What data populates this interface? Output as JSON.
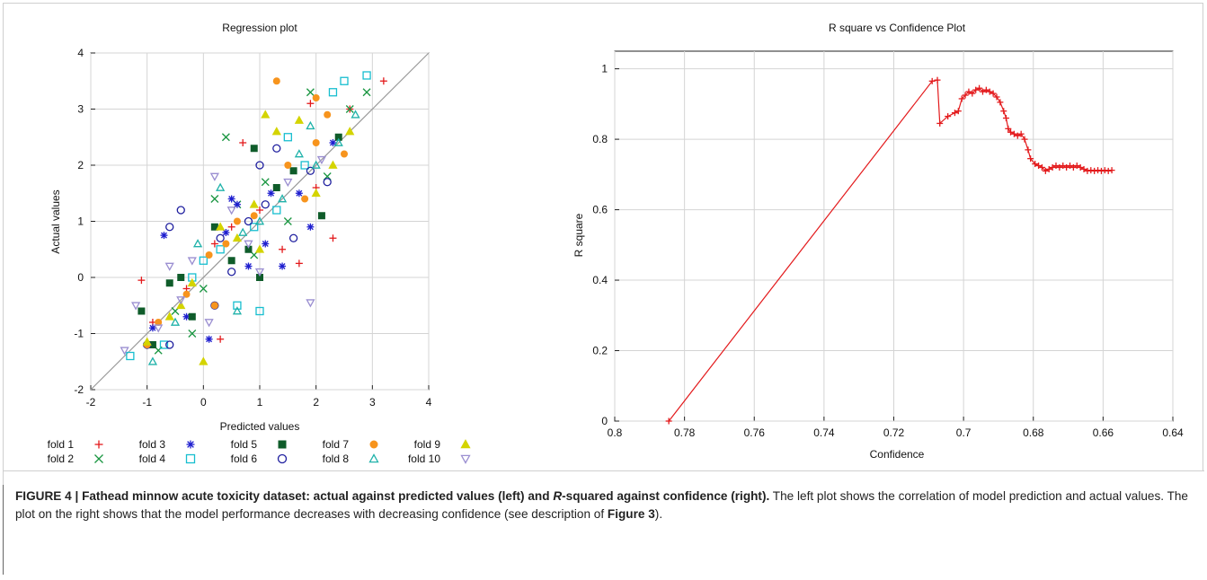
{
  "figure": {
    "caption": {
      "label": "FIGURE 4 | ",
      "title_pre": "Fathead minnow acute toxicity dataset: actual against predicted values (left) and ",
      "title_italic": "R",
      "title_post": "-squared against confidence (right).",
      "body_pre": " The left plot shows the correlation of model prediction and actual values. The plot on the right shows that the model performance decreases with decreasing confidence (see description of ",
      "body_bold": "Figure 3",
      "body_post": ")."
    }
  },
  "chart_data": [
    {
      "type": "scatter",
      "title": "Regression plot",
      "xlabel": "Predicted values",
      "ylabel": "Actual values",
      "xlim": [
        -2,
        4
      ],
      "ylim": [
        -2,
        4
      ],
      "xticks": [
        "-2",
        "-1",
        "0",
        "1",
        "2",
        "3",
        "4"
      ],
      "yticks": [
        "-2",
        "-1",
        "0",
        "1",
        "2",
        "3",
        "4"
      ],
      "grid": true,
      "reference_line": "y = x",
      "legend_position": "bottom",
      "series": [
        {
          "name": "fold 1",
          "marker": "plus",
          "color": "#e31a1c",
          "points": [
            [
              -1.1,
              -0.05
            ],
            [
              -0.9,
              -0.8
            ],
            [
              -0.3,
              -0.2
            ],
            [
              0.2,
              0.6
            ],
            [
              0.5,
              0.9
            ],
            [
              0.7,
              2.4
            ],
            [
              1.0,
              1.2
            ],
            [
              1.4,
              0.5
            ],
            [
              1.7,
              0.25
            ],
            [
              2.0,
              1.6
            ],
            [
              2.3,
              0.7
            ],
            [
              2.6,
              3.0
            ],
            [
              3.2,
              3.5
            ],
            [
              1.9,
              3.1
            ],
            [
              0.3,
              -1.1
            ]
          ]
        },
        {
          "name": "fold 2",
          "marker": "cross",
          "color": "#1a9641",
          "points": [
            [
              -0.8,
              -1.3
            ],
            [
              -0.5,
              -0.6
            ],
            [
              0.0,
              -0.2
            ],
            [
              0.4,
              2.5
            ],
            [
              0.6,
              1.3
            ],
            [
              0.9,
              0.4
            ],
            [
              1.1,
              1.7
            ],
            [
              1.5,
              1.0
            ],
            [
              1.9,
              3.3
            ],
            [
              2.2,
              1.8
            ],
            [
              2.9,
              3.3
            ],
            [
              0.2,
              1.4
            ],
            [
              -0.2,
              -1.0
            ],
            [
              2.6,
              3.0
            ]
          ]
        },
        {
          "name": "fold 3",
          "marker": "star",
          "color": "#1f1fcf",
          "points": [
            [
              -0.9,
              -0.9
            ],
            [
              -0.7,
              0.75
            ],
            [
              -0.3,
              -0.7
            ],
            [
              0.1,
              -1.1
            ],
            [
              0.4,
              0.8
            ],
            [
              0.6,
              1.3
            ],
            [
              0.8,
              0.2
            ],
            [
              1.1,
              0.6
            ],
            [
              1.4,
              0.2
            ],
            [
              1.7,
              1.5
            ],
            [
              1.9,
              0.9
            ],
            [
              2.3,
              2.4
            ],
            [
              0.5,
              1.4
            ],
            [
              1.2,
              1.5
            ]
          ]
        },
        {
          "name": "fold 4",
          "marker": "square-open",
          "color": "#17becf",
          "points": [
            [
              -1.3,
              -1.4
            ],
            [
              -0.7,
              -1.2
            ],
            [
              -0.2,
              0.0
            ],
            [
              0.3,
              0.5
            ],
            [
              0.6,
              -0.5
            ],
            [
              0.9,
              0.9
            ],
            [
              1.0,
              -0.6
            ],
            [
              1.3,
              1.2
            ],
            [
              1.8,
              2.0
            ],
            [
              2.3,
              3.3
            ],
            [
              2.5,
              3.5
            ],
            [
              2.9,
              3.6
            ],
            [
              1.5,
              2.5
            ],
            [
              0.0,
              0.3
            ]
          ]
        },
        {
          "name": "fold 5",
          "marker": "square-filled",
          "color": "#0f5c2a",
          "points": [
            [
              -1.1,
              -0.6
            ],
            [
              -0.9,
              -1.2
            ],
            [
              -0.6,
              -0.1
            ],
            [
              -0.2,
              -0.7
            ],
            [
              0.2,
              0.9
            ],
            [
              0.5,
              0.3
            ],
            [
              0.8,
              0.5
            ],
            [
              0.9,
              2.3
            ],
            [
              1.3,
              1.6
            ],
            [
              1.6,
              1.9
            ],
            [
              2.1,
              1.1
            ],
            [
              2.4,
              2.5
            ],
            [
              -0.4,
              0.0
            ],
            [
              1.0,
              0.0
            ]
          ]
        },
        {
          "name": "fold 6",
          "marker": "circle-open",
          "color": "#1f1f9f",
          "points": [
            [
              -1.0,
              -1.2
            ],
            [
              -0.6,
              -1.2
            ],
            [
              -0.4,
              1.2
            ],
            [
              -0.6,
              0.9
            ],
            [
              0.2,
              -0.5
            ],
            [
              0.5,
              0.1
            ],
            [
              0.8,
              1.0
            ],
            [
              1.0,
              2.0
            ],
            [
              1.3,
              2.3
            ],
            [
              1.6,
              0.7
            ],
            [
              1.9,
              1.9
            ],
            [
              2.2,
              1.7
            ],
            [
              1.1,
              1.3
            ],
            [
              0.3,
              0.7
            ]
          ]
        },
        {
          "name": "fold 7",
          "marker": "circle-filled",
          "color": "#f7941d",
          "points": [
            [
              -1.0,
              -1.2
            ],
            [
              -0.8,
              -0.8
            ],
            [
              -0.3,
              -0.3
            ],
            [
              0.1,
              0.4
            ],
            [
              0.4,
              0.6
            ],
            [
              0.6,
              1.0
            ],
            [
              0.9,
              1.1
            ],
            [
              1.3,
              3.5
            ],
            [
              1.5,
              2.0
            ],
            [
              1.8,
              1.4
            ],
            [
              2.0,
              2.4
            ],
            [
              2.2,
              2.9
            ],
            [
              2.5,
              2.2
            ],
            [
              2.0,
              3.2
            ],
            [
              0.2,
              -0.5
            ]
          ]
        },
        {
          "name": "fold 8",
          "marker": "triangle-open",
          "color": "#20b2aa",
          "points": [
            [
              -0.9,
              -1.5
            ],
            [
              -0.5,
              -0.8
            ],
            [
              -0.1,
              0.6
            ],
            [
              0.3,
              1.6
            ],
            [
              0.7,
              0.8
            ],
            [
              1.0,
              1.0
            ],
            [
              1.4,
              1.4
            ],
            [
              1.7,
              2.2
            ],
            [
              2.0,
              2.0
            ],
            [
              2.4,
              2.4
            ],
            [
              2.7,
              2.9
            ],
            [
              0.6,
              -0.6
            ],
            [
              1.9,
              2.7
            ]
          ]
        },
        {
          "name": "fold 9",
          "marker": "triangle-filled",
          "color": "#d4d400",
          "points": [
            [
              -1.0,
              -1.15
            ],
            [
              -0.6,
              -0.7
            ],
            [
              -0.2,
              -0.1
            ],
            [
              0.0,
              -1.5
            ],
            [
              0.3,
              0.9
            ],
            [
              0.6,
              0.7
            ],
            [
              0.9,
              1.3
            ],
            [
              1.1,
              2.9
            ],
            [
              1.3,
              2.6
            ],
            [
              1.7,
              2.8
            ],
            [
              2.0,
              1.5
            ],
            [
              2.3,
              2.0
            ],
            [
              2.6,
              2.6
            ],
            [
              1.0,
              0.5
            ],
            [
              -0.4,
              -0.5
            ]
          ]
        },
        {
          "name": "fold 10",
          "marker": "triangle-down-open",
          "color": "#9b8fd1",
          "points": [
            [
              -1.4,
              -1.3
            ],
            [
              -1.2,
              -0.5
            ],
            [
              -0.8,
              -0.9
            ],
            [
              -0.4,
              -0.4
            ],
            [
              0.2,
              1.8
            ],
            [
              0.5,
              1.2
            ],
            [
              0.8,
              0.6
            ],
            [
              1.0,
              0.1
            ],
            [
              1.5,
              1.7
            ],
            [
              1.9,
              -0.45
            ],
            [
              2.1,
              2.1
            ],
            [
              -0.6,
              0.2
            ],
            [
              0.1,
              -0.8
            ],
            [
              -0.2,
              0.3
            ]
          ]
        }
      ]
    },
    {
      "type": "line",
      "title": "R square vs Confidence Plot",
      "xlabel": "Confidence",
      "ylabel": "R square",
      "xlim": [
        0.8,
        0.64
      ],
      "ylim": [
        0,
        1.05
      ],
      "xticks": [
        "0.8",
        "0.78",
        "0.76",
        "0.74",
        "0.72",
        "0.7",
        "0.68",
        "0.66",
        "0.64"
      ],
      "yticks": [
        "0",
        "0.2",
        "0.4",
        "0.6",
        "0.8",
        "1"
      ],
      "grid": true,
      "series": [
        {
          "name": "",
          "color": "#e31a1c",
          "marker": "plus",
          "points": [
            [
              0.7845,
              0.0
            ],
            [
              0.709,
              0.965
            ],
            [
              0.7075,
              0.968
            ],
            [
              0.7068,
              0.845
            ],
            [
              0.7045,
              0.865
            ],
            [
              0.7025,
              0.875
            ],
            [
              0.7015,
              0.88
            ],
            [
              0.7005,
              0.915
            ],
            [
              0.6995,
              0.925
            ],
            [
              0.6985,
              0.935
            ],
            [
              0.6975,
              0.93
            ],
            [
              0.6965,
              0.94
            ],
            [
              0.6955,
              0.945
            ],
            [
              0.6945,
              0.935
            ],
            [
              0.6935,
              0.94
            ],
            [
              0.6925,
              0.935
            ],
            [
              0.6915,
              0.93
            ],
            [
              0.6905,
              0.92
            ],
            [
              0.6895,
              0.905
            ],
            [
              0.6885,
              0.88
            ],
            [
              0.6878,
              0.86
            ],
            [
              0.6872,
              0.83
            ],
            [
              0.6865,
              0.82
            ],
            [
              0.6855,
              0.815
            ],
            [
              0.6845,
              0.81
            ],
            [
              0.6835,
              0.815
            ],
            [
              0.6825,
              0.8
            ],
            [
              0.6815,
              0.77
            ],
            [
              0.6808,
              0.745
            ],
            [
              0.6795,
              0.73
            ],
            [
              0.6785,
              0.725
            ],
            [
              0.6775,
              0.72
            ],
            [
              0.6765,
              0.71
            ],
            [
              0.6755,
              0.715
            ],
            [
              0.6745,
              0.72
            ],
            [
              0.6735,
              0.725
            ],
            [
              0.6725,
              0.72
            ],
            [
              0.6715,
              0.725
            ],
            [
              0.6705,
              0.72
            ],
            [
              0.6695,
              0.725
            ],
            [
              0.6685,
              0.72
            ],
            [
              0.6675,
              0.725
            ],
            [
              0.6665,
              0.72
            ],
            [
              0.6655,
              0.715
            ],
            [
              0.6645,
              0.71
            ],
            [
              0.6635,
              0.712
            ],
            [
              0.6625,
              0.71
            ],
            [
              0.6615,
              0.712
            ],
            [
              0.6605,
              0.71
            ],
            [
              0.6595,
              0.712
            ],
            [
              0.6585,
              0.71
            ],
            [
              0.6575,
              0.712
            ]
          ]
        }
      ]
    }
  ]
}
